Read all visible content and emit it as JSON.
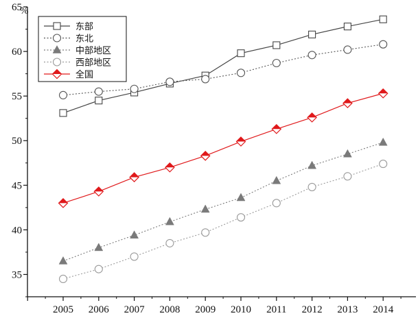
{
  "chart_data": {
    "type": "line",
    "title": "",
    "xlabel": "",
    "ylabel": "%",
    "ylim": [
      32.5,
      65
    ],
    "y_ticks": [
      35,
      40,
      45,
      50,
      55,
      60,
      65
    ],
    "categories": [
      "2005",
      "2006",
      "2007",
      "2008",
      "2009",
      "2010",
      "2011",
      "2012",
      "2013",
      "2014"
    ],
    "grid": false,
    "legend_position": "top-left",
    "series": [
      {
        "name": "东部",
        "marker": "square-open",
        "line": "solid",
        "color": "#444444",
        "values": [
          53.1,
          54.5,
          55.4,
          56.4,
          57.3,
          59.8,
          60.7,
          61.9,
          62.8,
          63.6
        ]
      },
      {
        "name": "东北",
        "marker": "circle-open",
        "line": "dotted",
        "color": "#555555",
        "values": [
          55.1,
          55.5,
          55.8,
          56.6,
          56.9,
          57.6,
          58.7,
          59.6,
          60.2,
          60.8
        ]
      },
      {
        "name": "中部地区",
        "marker": "triangle-filled",
        "line": "dotted",
        "color": "#7a7a7a",
        "values": [
          36.5,
          38.0,
          39.4,
          40.9,
          42.3,
          43.6,
          45.5,
          47.2,
          48.5,
          49.8
        ]
      },
      {
        "name": "西部地区",
        "marker": "circle-open",
        "line": "dotted",
        "color": "#9a9a9a",
        "values": [
          34.5,
          35.6,
          37.0,
          38.5,
          39.7,
          41.4,
          43.0,
          44.8,
          46.0,
          47.4
        ]
      },
      {
        "name": "全国",
        "marker": "diamond-red",
        "line": "solid",
        "color": "#e0191b",
        "values": [
          43.0,
          44.3,
          45.9,
          47.0,
          48.3,
          49.9,
          51.3,
          52.6,
          54.2,
          55.3
        ]
      }
    ]
  }
}
